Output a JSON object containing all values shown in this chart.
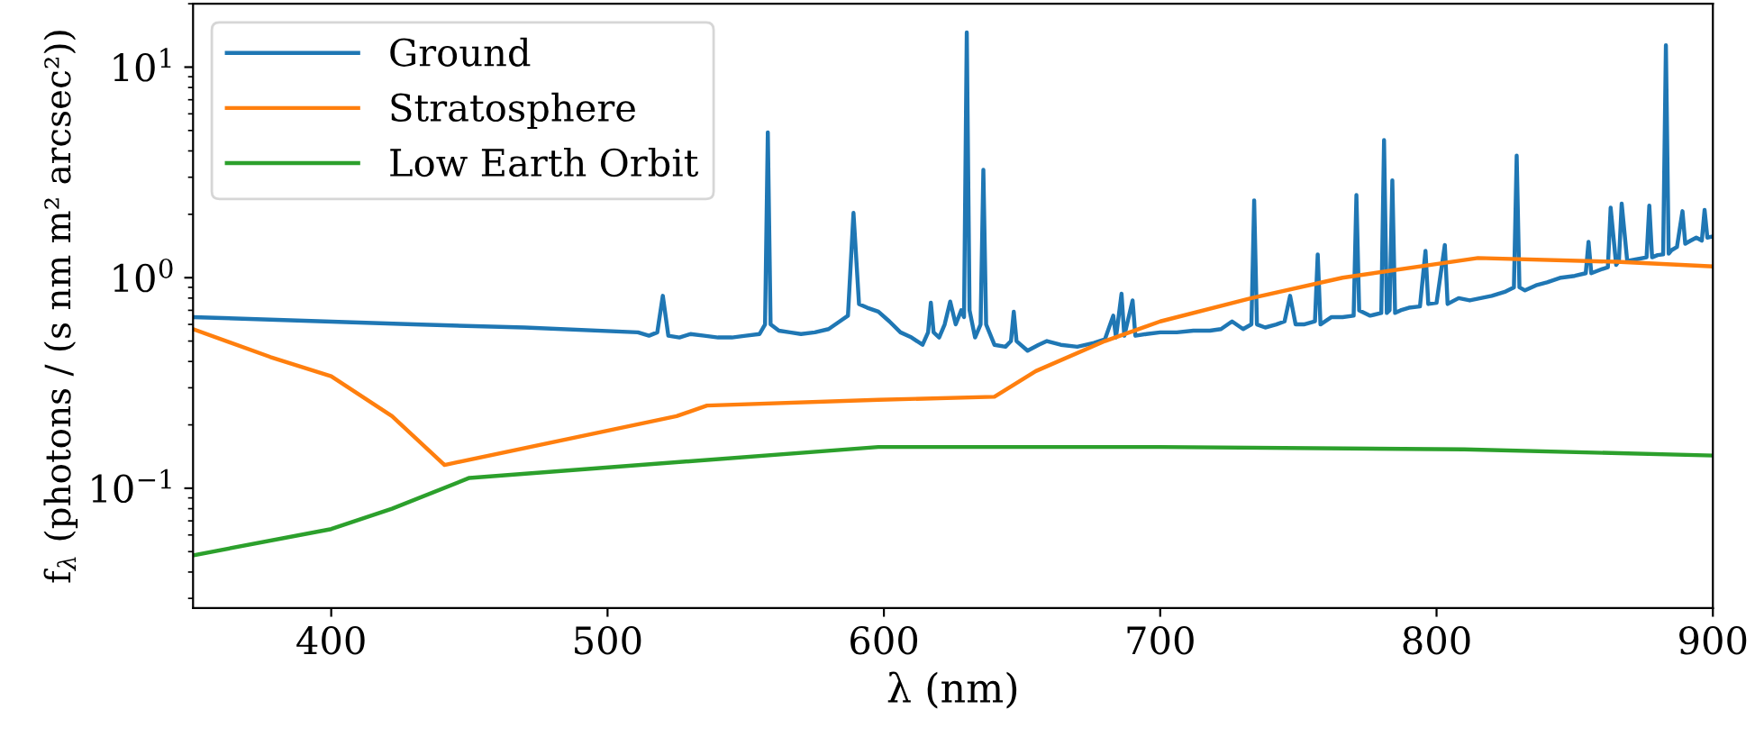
{
  "chart_data": {
    "type": "line",
    "xlabel": "λ (nm)",
    "ylabel": "f$_{λ}$ (photons / (s nm m² arcsec²))",
    "log": "y",
    "grid": false,
    "legend": "top left",
    "line_style": "solid",
    "marker": "none",
    "xlim": [
      350,
      900
    ],
    "xticks": [
      400,
      500,
      600,
      700,
      800,
      900
    ],
    "ylim": [
      0.027,
      20
    ],
    "yticks": [
      {
        "value": 0.1,
        "label": "10$^{−1}$"
      },
      {
        "value": 1,
        "label": "10$^{0}$"
      },
      {
        "value": 10,
        "label": "10$^{1}$"
      }
    ],
    "series": [
      {
        "name": "Ground",
        "color": "#1f77b4",
        "x": [
          350,
          430,
          470,
          511,
          515,
          518,
          520,
          522,
          526,
          530,
          535,
          540,
          545,
          550,
          555,
          557,
          558,
          559,
          562,
          566,
          570,
          575,
          580,
          584,
          587,
          589,
          591,
          594,
          598,
          602,
          606,
          610,
          614,
          616,
          617,
          618,
          620,
          622,
          624,
          626,
          628,
          629,
          630,
          631,
          633,
          635,
          636,
          637,
          640,
          644,
          646,
          647,
          648,
          652,
          656,
          659,
          664,
          670,
          676,
          680,
          683,
          684,
          686,
          687,
          690,
          691,
          695,
          700,
          706,
          712,
          718,
          722,
          726,
          730,
          733,
          734,
          735,
          738,
          742,
          745,
          747,
          749,
          752,
          756,
          757,
          758,
          762,
          766,
          770,
          771,
          772,
          776,
          780,
          781,
          782,
          783,
          784,
          785,
          787,
          790,
          794,
          796,
          797,
          800,
          803,
          804,
          808,
          812,
          816,
          820,
          825,
          828,
          829,
          830,
          832,
          836,
          840,
          845,
          850,
          854,
          855,
          856,
          860,
          862,
          863,
          865,
          866,
          867,
          869,
          872,
          876,
          877,
          878,
          880,
          882,
          883,
          884,
          885,
          887,
          889,
          890,
          892,
          894,
          896,
          897,
          898,
          900
        ],
        "values": [
          0.65,
          0.6,
          0.58,
          0.55,
          0.53,
          0.55,
          0.82,
          0.53,
          0.52,
          0.54,
          0.53,
          0.52,
          0.52,
          0.53,
          0.54,
          0.6,
          4.9,
          0.6,
          0.56,
          0.55,
          0.54,
          0.55,
          0.57,
          0.62,
          0.66,
          2.03,
          0.75,
          0.72,
          0.69,
          0.62,
          0.55,
          0.52,
          0.48,
          0.55,
          0.76,
          0.55,
          0.52,
          0.6,
          0.77,
          0.6,
          0.7,
          0.65,
          14.6,
          0.7,
          0.52,
          0.6,
          3.25,
          0.6,
          0.48,
          0.47,
          0.5,
          0.69,
          0.5,
          0.45,
          0.48,
          0.5,
          0.48,
          0.47,
          0.49,
          0.51,
          0.66,
          0.52,
          0.84,
          0.53,
          0.78,
          0.53,
          0.54,
          0.55,
          0.55,
          0.56,
          0.56,
          0.57,
          0.62,
          0.57,
          0.6,
          2.33,
          0.6,
          0.58,
          0.6,
          0.62,
          0.82,
          0.6,
          0.6,
          0.62,
          1.29,
          0.6,
          0.65,
          0.65,
          0.66,
          2.47,
          0.7,
          0.66,
          0.68,
          4.5,
          0.68,
          0.7,
          2.9,
          0.68,
          0.7,
          0.72,
          0.73,
          1.34,
          0.75,
          0.76,
          1.43,
          0.75,
          0.8,
          0.78,
          0.8,
          0.82,
          0.86,
          0.9,
          3.8,
          0.9,
          0.87,
          0.92,
          0.95,
          1.0,
          1.02,
          1.05,
          1.48,
          1.05,
          1.1,
          1.12,
          2.15,
          1.15,
          1.2,
          2.25,
          1.2,
          1.22,
          1.25,
          2.2,
          1.25,
          1.28,
          1.29,
          12.7,
          1.3,
          1.35,
          1.4,
          2.07,
          1.45,
          1.5,
          1.55,
          1.5,
          2.1,
          1.55,
          1.57
        ]
      },
      {
        "name": "Stratosphere",
        "color": "#ff7f0e",
        "x": [
          350,
          378,
          400,
          422,
          441,
          525,
          536,
          598,
          640,
          655,
          680,
          700,
          733,
          766,
          815,
          865,
          900
        ],
        "values": [
          0.57,
          0.42,
          0.34,
          0.22,
          0.129,
          0.22,
          0.247,
          0.263,
          0.272,
          0.36,
          0.5,
          0.62,
          0.8,
          1.0,
          1.24,
          1.19,
          1.13
        ]
      },
      {
        "name": "Low Earth Orbit",
        "color": "#2ca02c",
        "x": [
          350,
          400,
          422,
          450,
          598,
          700,
          810,
          900
        ],
        "values": [
          0.048,
          0.064,
          0.08,
          0.112,
          0.157,
          0.157,
          0.153,
          0.143
        ]
      }
    ]
  }
}
